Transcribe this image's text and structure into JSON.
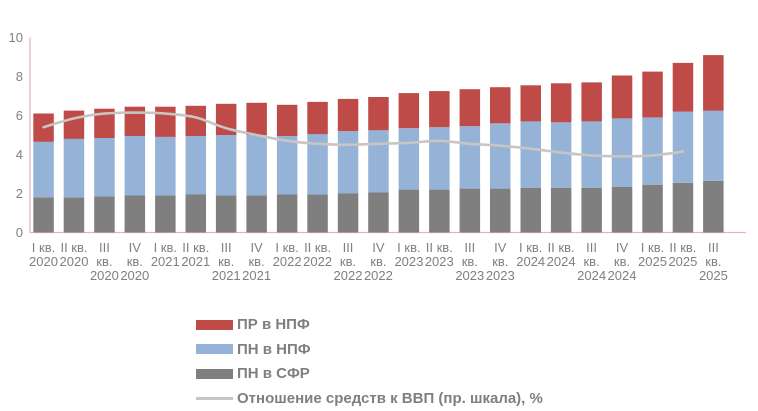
{
  "page": {
    "background": "#FFFFFF"
  },
  "chart_data": {
    "type": "bar",
    "subtype": "stacked-bar-with-line",
    "title": "",
    "xlabel": "",
    "ylabel": "",
    "categories": [
      "I кв. 2020",
      "II кв. 2020",
      "III кв. 2020",
      "IV кв. 2020",
      "I кв. 2021",
      "II кв. 2021",
      "III кв. 2021",
      "IV кв. 2021",
      "I кв. 2022",
      "II кв. 2022",
      "III кв. 2022",
      "IV кв. 2022",
      "I кв. 2023",
      "II кв. 2023",
      "III кв. 2023",
      "IV кв. 2023",
      "I кв. 2024",
      "II кв. 2024",
      "III кв. 2024",
      "IV кв. 2024",
      "I кв. 2025",
      "II кв. 2025",
      "III кв. 2025"
    ],
    "series": [
      {
        "name": "ПР в НПФ",
        "type": "bar",
        "color": "#BE4B48",
        "values": [
          1.45,
          1.45,
          1.5,
          1.5,
          1.55,
          1.55,
          1.6,
          1.65,
          1.6,
          1.65,
          1.65,
          1.7,
          1.8,
          1.85,
          1.9,
          1.85,
          1.85,
          2.0,
          2.0,
          2.2,
          2.35,
          2.5,
          2.85
        ]
      },
      {
        "name": "ПН в НПФ",
        "type": "bar",
        "color": "#95B3D7",
        "values": [
          2.85,
          3.0,
          3.0,
          3.05,
          3.0,
          3.0,
          3.1,
          3.1,
          3.0,
          3.1,
          3.2,
          3.2,
          3.15,
          3.2,
          3.2,
          3.35,
          3.4,
          3.35,
          3.4,
          3.5,
          3.45,
          3.65,
          3.6
        ]
      },
      {
        "name": "ПН в СФР",
        "type": "bar",
        "color": "#7F7F7F",
        "values": [
          1.8,
          1.8,
          1.85,
          1.9,
          1.9,
          1.95,
          1.9,
          1.9,
          1.95,
          1.95,
          2.0,
          2.05,
          2.2,
          2.2,
          2.25,
          2.25,
          2.3,
          2.3,
          2.3,
          2.35,
          2.45,
          2.55,
          2.65
        ]
      },
      {
        "name": "Отношение средств к ВВП (пр. шкала), %",
        "type": "line",
        "color": "#C9C5C3",
        "values": [
          5.4,
          5.85,
          6.1,
          6.15,
          6.1,
          5.9,
          5.35,
          5.0,
          4.7,
          4.55,
          4.5,
          4.55,
          4.6,
          4.7,
          4.55,
          4.45,
          4.3,
          4.1,
          3.95,
          3.9,
          3.95,
          4.15,
          null
        ]
      }
    ],
    "stack_order_bottom_to_top": [
      "ПН в СФР",
      "ПН в НПФ",
      "ПР в НПФ"
    ],
    "y_axis": {
      "min": 0,
      "max": 10,
      "ticks": [
        0,
        2,
        4,
        6,
        8,
        10
      ]
    },
    "right_axis_visible": false,
    "grid": false,
    "legend_position": "bottom-left",
    "axis_color": "#E2B5B4",
    "text_color": "#808080"
  }
}
